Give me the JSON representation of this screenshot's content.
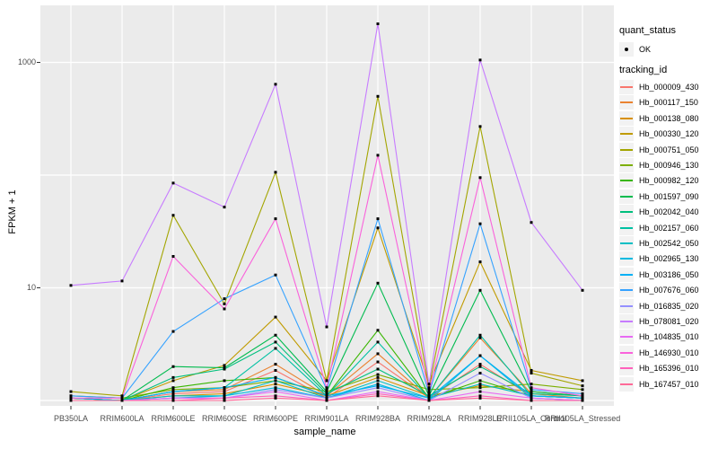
{
  "chart_data": {
    "type": "line",
    "title": "",
    "xlabel": "sample_name",
    "ylabel": "FPKM + 1",
    "y_scale": "log10",
    "ylim": [
      1,
      3000
    ],
    "grid": "major",
    "panel_bg": "#EBEBEB",
    "grid_color": "#FFFFFF",
    "marker_color": "#000000",
    "y_ticks": [
      {
        "value": 10,
        "label": "10"
      },
      {
        "value": 1000,
        "label": "1000"
      }
    ],
    "y_gridlines": [
      1,
      10,
      100,
      1000
    ],
    "categories": [
      "PB350LA",
      "RRIM600LA",
      "RRIM600LE",
      "RRIM600SE",
      "RRIM600PE",
      "RRIM901LA",
      "RRIM928BA",
      "RRIM928LA",
      "RRIM928LE",
      "RRII105LA_Control",
      "RRII105LA_Stressed"
    ],
    "legend": {
      "position": "right",
      "quant_status": {
        "title": "quant_status",
        "items": [
          {
            "label": "OK",
            "marker": "point",
            "color": "#000000"
          }
        ]
      },
      "tracking_id": {
        "title": "tracking_id"
      }
    },
    "series": [
      {
        "name": "Hb_000009_430",
        "color": "#F8766D",
        "values": [
          1.05,
          1,
          1.15,
          1.2,
          1.85,
          1.05,
          2.2,
          1.05,
          2.1,
          1.1,
          1.05
        ]
      },
      {
        "name": "Hb_000117_150",
        "color": "#EA8331",
        "values": [
          1.05,
          1,
          1.2,
          1.25,
          2.1,
          1.1,
          2.6,
          1.05,
          3.6,
          1.15,
          1.05
        ]
      },
      {
        "name": "Hb_000138_080",
        "color": "#D89000",
        "values": [
          1.05,
          1,
          1.1,
          1.15,
          1.4,
          1.1,
          1.6,
          1.1,
          1.35,
          1.2,
          1.1
        ]
      },
      {
        "name": "Hb_000330_120",
        "color": "#C09B00",
        "values": [
          1.05,
          1,
          1.5,
          2.05,
          5.5,
          1.5,
          34,
          1.4,
          17,
          1.85,
          1.5
        ]
      },
      {
        "name": "Hb_000751_050",
        "color": "#A3A500",
        "values": [
          1.2,
          1.1,
          44,
          7.2,
          106,
          1.5,
          500,
          1.3,
          270,
          1.75,
          1.35
        ]
      },
      {
        "name": "Hb_000946_130",
        "color": "#7CAE00",
        "values": [
          1.1,
          1.05,
          1.25,
          1.3,
          1.5,
          1.2,
          1.7,
          1.25,
          1.3,
          1.4,
          1.25
        ]
      },
      {
        "name": "Hb_000982_120",
        "color": "#39B600",
        "values": [
          1,
          1,
          1.3,
          1.5,
          1.6,
          1.1,
          4.2,
          1.05,
          1.5,
          1.1,
          1.05
        ]
      },
      {
        "name": "Hb_001597_090",
        "color": "#00BB4E",
        "values": [
          1.05,
          1,
          2,
          1.95,
          3.8,
          1.2,
          11,
          1.1,
          9.5,
          1.2,
          1.1
        ]
      },
      {
        "name": "Hb_002042_040",
        "color": "#00BF7D",
        "values": [
          1,
          1,
          1.6,
          1.9,
          3.3,
          1.15,
          1.9,
          1.1,
          2,
          1.15,
          1.1
        ]
      },
      {
        "name": "Hb_002157_060",
        "color": "#00C1A3",
        "values": [
          1,
          1,
          1.2,
          1.3,
          2.9,
          1.1,
          3.3,
          1.05,
          3.8,
          1.1,
          1.05
        ]
      },
      {
        "name": "Hb_002542_050",
        "color": "#00BFC4",
        "values": [
          1,
          1,
          1.1,
          1.1,
          1.5,
          1.05,
          1.5,
          1.05,
          1.4,
          1.1,
          1.05
        ]
      },
      {
        "name": "Hb_002965_130",
        "color": "#00BAE0",
        "values": [
          1,
          1,
          1.05,
          1.1,
          1.3,
          1.05,
          1.4,
          1,
          2.5,
          1.05,
          1
        ]
      },
      {
        "name": "Hb_003186_050",
        "color": "#00B0F6",
        "values": [
          1.05,
          1,
          1.2,
          1.3,
          1.6,
          1.1,
          1.35,
          1.05,
          2.5,
          1.1,
          1.05
        ]
      },
      {
        "name": "Hb_007676_060",
        "color": "#35A2FF",
        "values": [
          1.1,
          1.05,
          4.1,
          8,
          13,
          1.25,
          41,
          1.15,
          37,
          1.25,
          1.15
        ]
      },
      {
        "name": "Hb_016835_020",
        "color": "#9590FF",
        "values": [
          1,
          1,
          1.05,
          1.05,
          1.25,
          1.05,
          1.3,
          1,
          1.75,
          1.05,
          1
        ]
      },
      {
        "name": "Hb_078081_020",
        "color": "#C77CFF",
        "values": [
          10.5,
          11.5,
          85,
          52,
          640,
          4.5,
          2200,
          1.4,
          1050,
          38,
          9.5
        ]
      },
      {
        "name": "Hb_104835_010",
        "color": "#E76BF3",
        "values": [
          1,
          1,
          1.05,
          1.05,
          1.2,
          1,
          1.2,
          1,
          1.2,
          1.05,
          1
        ]
      },
      {
        "name": "Hb_146930_010",
        "color": "#FA62DB",
        "values": [
          1.05,
          1.05,
          19,
          6.5,
          41,
          1.3,
          150,
          1.2,
          95,
          1.3,
          1.1
        ]
      },
      {
        "name": "Hb_165396_010",
        "color": "#FF62BC",
        "values": [
          1,
          1,
          1,
          1.05,
          1.1,
          1,
          1.15,
          1,
          1.1,
          1,
          1
        ]
      },
      {
        "name": "Hb_167457_010",
        "color": "#FF6A98",
        "values": [
          1,
          1,
          1,
          1,
          1.05,
          1,
          1.1,
          1,
          1.05,
          1,
          1
        ]
      }
    ]
  }
}
